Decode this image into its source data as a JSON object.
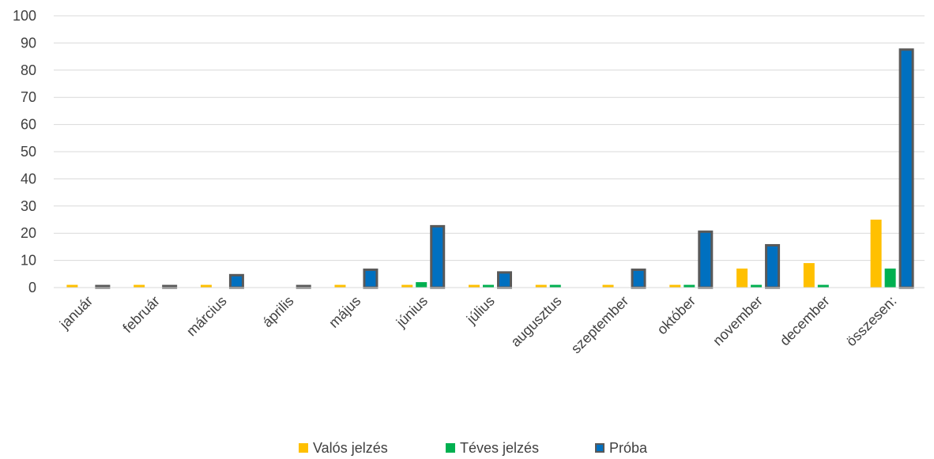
{
  "chart_data": {
    "type": "bar",
    "categories": [
      "január",
      "február",
      "március",
      "április",
      "május",
      "június",
      "július",
      "augusztus",
      "szeptember",
      "október",
      "november",
      "december",
      "összesen:"
    ],
    "series": [
      {
        "name": "Valós jelzés",
        "color": "#FFC000",
        "values": [
          1,
          1,
          1,
          0,
          1,
          1,
          1,
          1,
          1,
          1,
          7,
          9,
          25
        ]
      },
      {
        "name": "Téves jelzés",
        "color": "#00B050",
        "values": [
          0,
          0,
          0,
          0,
          0,
          2,
          1,
          1,
          0,
          1,
          1,
          1,
          7
        ]
      },
      {
        "name": "Próba",
        "color": "#0070C0",
        "border": "#595959",
        "values": [
          1,
          1,
          5,
          1,
          7,
          23,
          6,
          0,
          7,
          21,
          16,
          0,
          88
        ]
      }
    ],
    "yticks": [
      0,
      10,
      20,
      30,
      40,
      50,
      60,
      70,
      80,
      90,
      100
    ],
    "ylim": [
      0,
      100
    ],
    "grid": true,
    "legend_position": "bottom"
  }
}
